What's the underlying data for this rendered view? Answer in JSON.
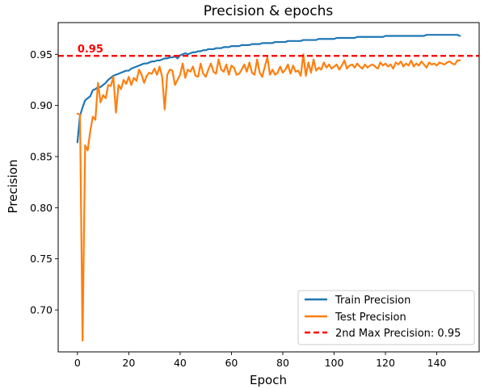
{
  "chart_data": {
    "type": "line",
    "title": "Precision & epochs",
    "xlabel": "Epoch",
    "ylabel": "Precision",
    "xlim": [
      -7.5,
      156.5
    ],
    "ylim": [
      0.659,
      0.981
    ],
    "xticks": [
      0,
      20,
      40,
      60,
      80,
      100,
      120,
      140
    ],
    "yticks": [
      0.7,
      0.75,
      0.8,
      0.85,
      0.9,
      0.95
    ],
    "ytick_labels": [
      "0.70",
      "0.75",
      "0.80",
      "0.85",
      "0.90",
      "0.95"
    ],
    "grid": false,
    "legend_position": "lower-right",
    "series": [
      {
        "name": "Train Precision",
        "color": "#1f77b4",
        "x_start": 0,
        "values": [
          0.864,
          0.89,
          0.898,
          0.905,
          0.907,
          0.909,
          0.915,
          0.916,
          0.918,
          0.918,
          0.92,
          0.922,
          0.925,
          0.927,
          0.929,
          0.93,
          0.931,
          0.932,
          0.933,
          0.934,
          0.934,
          0.936,
          0.937,
          0.938,
          0.939,
          0.94,
          0.941,
          0.941,
          0.942,
          0.943,
          0.943,
          0.944,
          0.944,
          0.945,
          0.946,
          0.946,
          0.947,
          0.947,
          0.948,
          0.946,
          0.949,
          0.95,
          0.951,
          0.95,
          0.951,
          0.952,
          0.952,
          0.953,
          0.953,
          0.954,
          0.954,
          0.955,
          0.955,
          0.955,
          0.956,
          0.956,
          0.956,
          0.957,
          0.957,
          0.957,
          0.958,
          0.958,
          0.958,
          0.958,
          0.959,
          0.959,
          0.959,
          0.959,
          0.96,
          0.96,
          0.96,
          0.96,
          0.961,
          0.961,
          0.961,
          0.961,
          0.961,
          0.962,
          0.962,
          0.962,
          0.962,
          0.962,
          0.963,
          0.963,
          0.963,
          0.963,
          0.963,
          0.963,
          0.964,
          0.964,
          0.964,
          0.964,
          0.964,
          0.964,
          0.965,
          0.965,
          0.965,
          0.965,
          0.965,
          0.965,
          0.965,
          0.966,
          0.966,
          0.966,
          0.966,
          0.966,
          0.966,
          0.966,
          0.966,
          0.967,
          0.967,
          0.967,
          0.967,
          0.967,
          0.967,
          0.967,
          0.967,
          0.967,
          0.967,
          0.967,
          0.968,
          0.968,
          0.968,
          0.968,
          0.968,
          0.968,
          0.968,
          0.968,
          0.968,
          0.968,
          0.968,
          0.968,
          0.968,
          0.968,
          0.968,
          0.968,
          0.969,
          0.969,
          0.969,
          0.969,
          0.969,
          0.969,
          0.969,
          0.969,
          0.969,
          0.969,
          0.969,
          0.969,
          0.969,
          0.968
        ]
      },
      {
        "name": "Test Precision",
        "color": "#ff7f0e",
        "x_start": 0,
        "values": [
          0.892,
          0.891,
          0.67,
          0.861,
          0.856,
          0.875,
          0.889,
          0.886,
          0.922,
          0.903,
          0.91,
          0.907,
          0.92,
          0.919,
          0.928,
          0.893,
          0.92,
          0.916,
          0.925,
          0.921,
          0.928,
          0.92,
          0.927,
          0.924,
          0.935,
          0.93,
          0.922,
          0.929,
          0.932,
          0.931,
          0.936,
          0.93,
          0.938,
          0.928,
          0.896,
          0.93,
          0.935,
          0.934,
          0.92,
          0.925,
          0.93,
          0.941,
          0.927,
          0.935,
          0.933,
          0.938,
          0.929,
          0.928,
          0.941,
          0.931,
          0.928,
          0.935,
          0.941,
          0.933,
          0.931,
          0.945,
          0.935,
          0.933,
          0.94,
          0.93,
          0.939,
          0.937,
          0.93,
          0.931,
          0.935,
          0.94,
          0.933,
          0.942,
          0.932,
          0.93,
          0.945,
          0.932,
          0.928,
          0.938,
          0.947,
          0.93,
          0.935,
          0.93,
          0.932,
          0.938,
          0.932,
          0.935,
          0.94,
          0.931,
          0.939,
          0.933,
          0.934,
          0.929,
          0.95,
          0.929,
          0.942,
          0.932,
          0.945,
          0.934,
          0.937,
          0.935,
          0.942,
          0.937,
          0.94,
          0.936,
          0.938,
          0.94,
          0.935,
          0.939,
          0.944,
          0.936,
          0.939,
          0.94,
          0.937,
          0.941,
          0.938,
          0.936,
          0.94,
          0.937,
          0.939,
          0.94,
          0.938,
          0.936,
          0.942,
          0.939,
          0.941,
          0.938,
          0.94,
          0.936,
          0.942,
          0.94,
          0.943,
          0.938,
          0.941,
          0.939,
          0.944,
          0.938,
          0.941,
          0.939,
          0.943,
          0.94,
          0.937,
          0.942,
          0.94,
          0.941,
          0.939,
          0.942,
          0.941,
          0.94,
          0.942,
          0.943,
          0.941,
          0.94,
          0.944,
          0.944
        ]
      }
    ],
    "reference_lines": [
      {
        "name": "2nd Max Precision: 0.95",
        "y": 0.9485,
        "color": "#ff0000",
        "style": "dashed"
      }
    ],
    "annotations": [
      {
        "text": "0.95",
        "x": 0,
        "y": 0.9485,
        "color": "#ff0000"
      }
    ]
  }
}
